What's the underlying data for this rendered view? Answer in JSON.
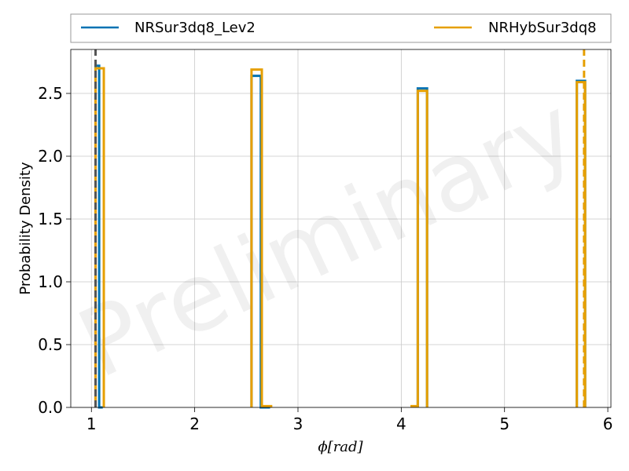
{
  "chart_data": {
    "type": "step-histogram",
    "xlabel": "ϕ[rad]",
    "ylabel": "Probability Density",
    "watermark": "Preliminary",
    "xlim": [
      0.8,
      6.03
    ],
    "ylim": [
      0,
      2.85
    ],
    "xticks": [
      1,
      2,
      3,
      4,
      5,
      6
    ],
    "yticks": [
      0.0,
      0.5,
      1.0,
      1.5,
      2.0,
      2.5
    ],
    "ytick_labels": [
      "0.0",
      "0.5",
      "1.0",
      "1.5",
      "2.0",
      "2.5"
    ],
    "grid": true,
    "legend_position": "top",
    "series": [
      {
        "name": "NRSur3dq8_Lev2",
        "color": "#0072b2",
        "steps": [
          [
            1.04,
            1.075,
            2.72
          ],
          [
            1.075,
            1.11,
            0
          ],
          [
            2.55,
            2.64,
            2.64
          ],
          [
            2.64,
            2.73,
            0
          ],
          [
            4.16,
            4.25,
            2.54
          ],
          [
            5.7,
            5.78,
            2.6
          ]
        ],
        "marker": 1.04,
        "marker_style": "dashed",
        "marker_color": "#555555"
      },
      {
        "name": "NRHybSur3dq8",
        "color": "#e69f00",
        "steps": [
          [
            1.04,
            1.12,
            2.7
          ],
          [
            2.55,
            2.65,
            2.69
          ],
          [
            2.65,
            2.74,
            0.01
          ],
          [
            4.1,
            4.16,
            0.01
          ],
          [
            4.16,
            4.25,
            2.52
          ],
          [
            5.7,
            5.78,
            2.59
          ]
        ],
        "marker": 5.77,
        "marker_style": "dashed",
        "marker_color": "#e69f00"
      }
    ]
  }
}
